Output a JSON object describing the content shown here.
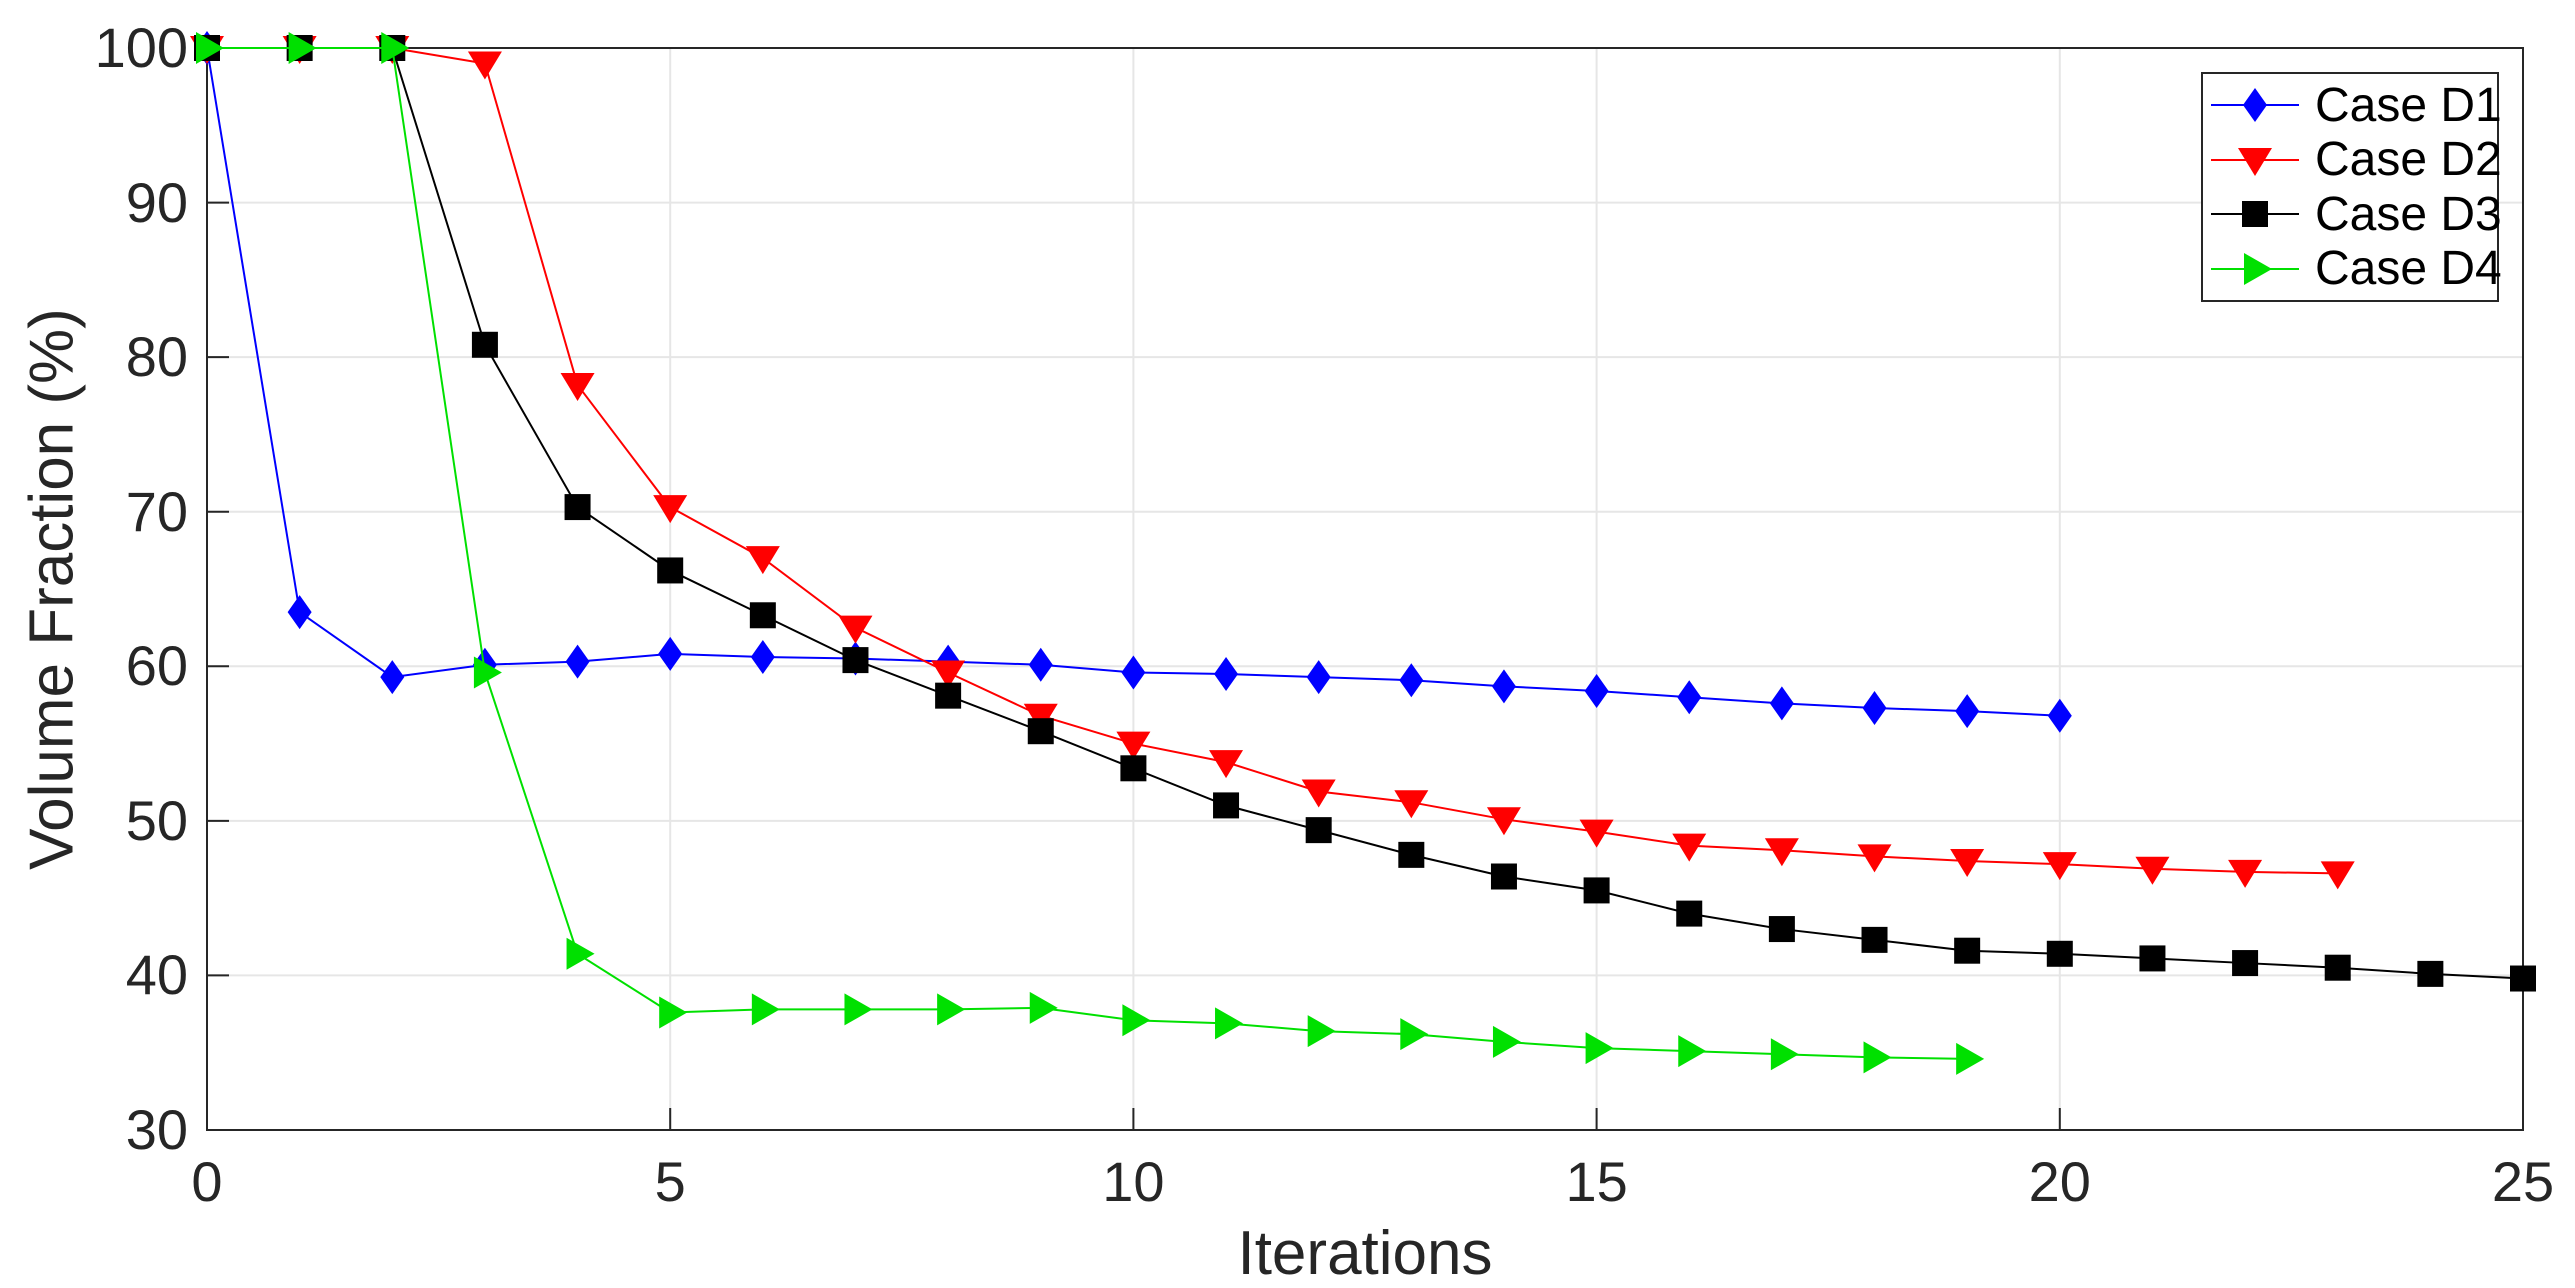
{
  "figure": {
    "background": "#ffffff"
  },
  "chart_data": {
    "type": "line",
    "title": "",
    "xlabel": "Iterations",
    "ylabel": "Volume Fraction (%)",
    "xlim": [
      0,
      25
    ],
    "ylim": [
      30,
      100
    ],
    "x_ticks": [
      0,
      5,
      10,
      15,
      20,
      25
    ],
    "y_ticks": [
      30,
      40,
      50,
      60,
      70,
      80,
      90,
      100
    ],
    "grid": true,
    "legend_position": "top-right-inside",
    "series": [
      {
        "name": "Case D1",
        "color": "#0000ff",
        "marker": "diamond",
        "x": [
          0,
          1,
          2,
          3,
          4,
          5,
          6,
          7,
          8,
          9,
          10,
          11,
          12,
          13,
          14,
          15,
          16,
          17,
          18,
          19,
          20
        ],
        "values": [
          100,
          63.5,
          59.3,
          60.1,
          60.3,
          60.8,
          60.6,
          60.5,
          60.3,
          60.1,
          59.6,
          59.5,
          59.3,
          59.1,
          58.7,
          58.4,
          58.0,
          57.6,
          57.3,
          57.1,
          56.8
        ]
      },
      {
        "name": "Case D2",
        "color": "#ff0000",
        "marker": "triangle-down",
        "x": [
          0,
          1,
          2,
          3,
          4,
          5,
          6,
          7,
          8,
          9,
          10,
          11,
          12,
          13,
          14,
          15,
          16,
          17,
          18,
          19,
          20,
          21,
          22,
          23
        ],
        "values": [
          100,
          100,
          100,
          99.0,
          78.2,
          70.3,
          67.0,
          62.5,
          59.6,
          56.8,
          55.0,
          53.8,
          51.9,
          51.2,
          50.1,
          49.3,
          48.4,
          48.1,
          47.7,
          47.4,
          47.2,
          46.9,
          46.7,
          46.6
        ]
      },
      {
        "name": "Case D3",
        "color": "#000000",
        "marker": "square",
        "x": [
          0,
          1,
          2,
          3,
          4,
          5,
          6,
          7,
          8,
          9,
          10,
          11,
          12,
          13,
          14,
          15,
          16,
          17,
          18,
          19,
          20,
          21,
          22,
          23,
          24,
          25
        ],
        "values": [
          100,
          100,
          100,
          80.8,
          70.3,
          66.2,
          63.3,
          60.4,
          58.1,
          55.8,
          53.4,
          51.0,
          49.4,
          47.8,
          46.4,
          45.5,
          44.0,
          43.0,
          42.3,
          41.6,
          41.4,
          41.1,
          40.8,
          40.5,
          40.1,
          39.8
        ]
      },
      {
        "name": "Case D4",
        "color": "#00e000",
        "marker": "triangle-right",
        "x": [
          0,
          1,
          2,
          3,
          4,
          5,
          6,
          7,
          8,
          9,
          10,
          11,
          12,
          13,
          14,
          15,
          16,
          17,
          18,
          19
        ],
        "values": [
          100,
          100,
          100,
          59.6,
          41.4,
          37.6,
          37.8,
          37.8,
          37.8,
          37.9,
          37.1,
          36.9,
          36.4,
          36.2,
          35.7,
          35.3,
          35.1,
          34.9,
          34.7,
          34.6
        ]
      }
    ]
  },
  "legend": {
    "items": [
      {
        "label": "Case D1"
      },
      {
        "label": "Case D2"
      },
      {
        "label": "Case D3"
      },
      {
        "label": "Case D4"
      }
    ]
  },
  "colors": {
    "grid": "#e6e6e6",
    "axis": "#262626",
    "tick_text": "#262626",
    "background": "#ffffff"
  }
}
